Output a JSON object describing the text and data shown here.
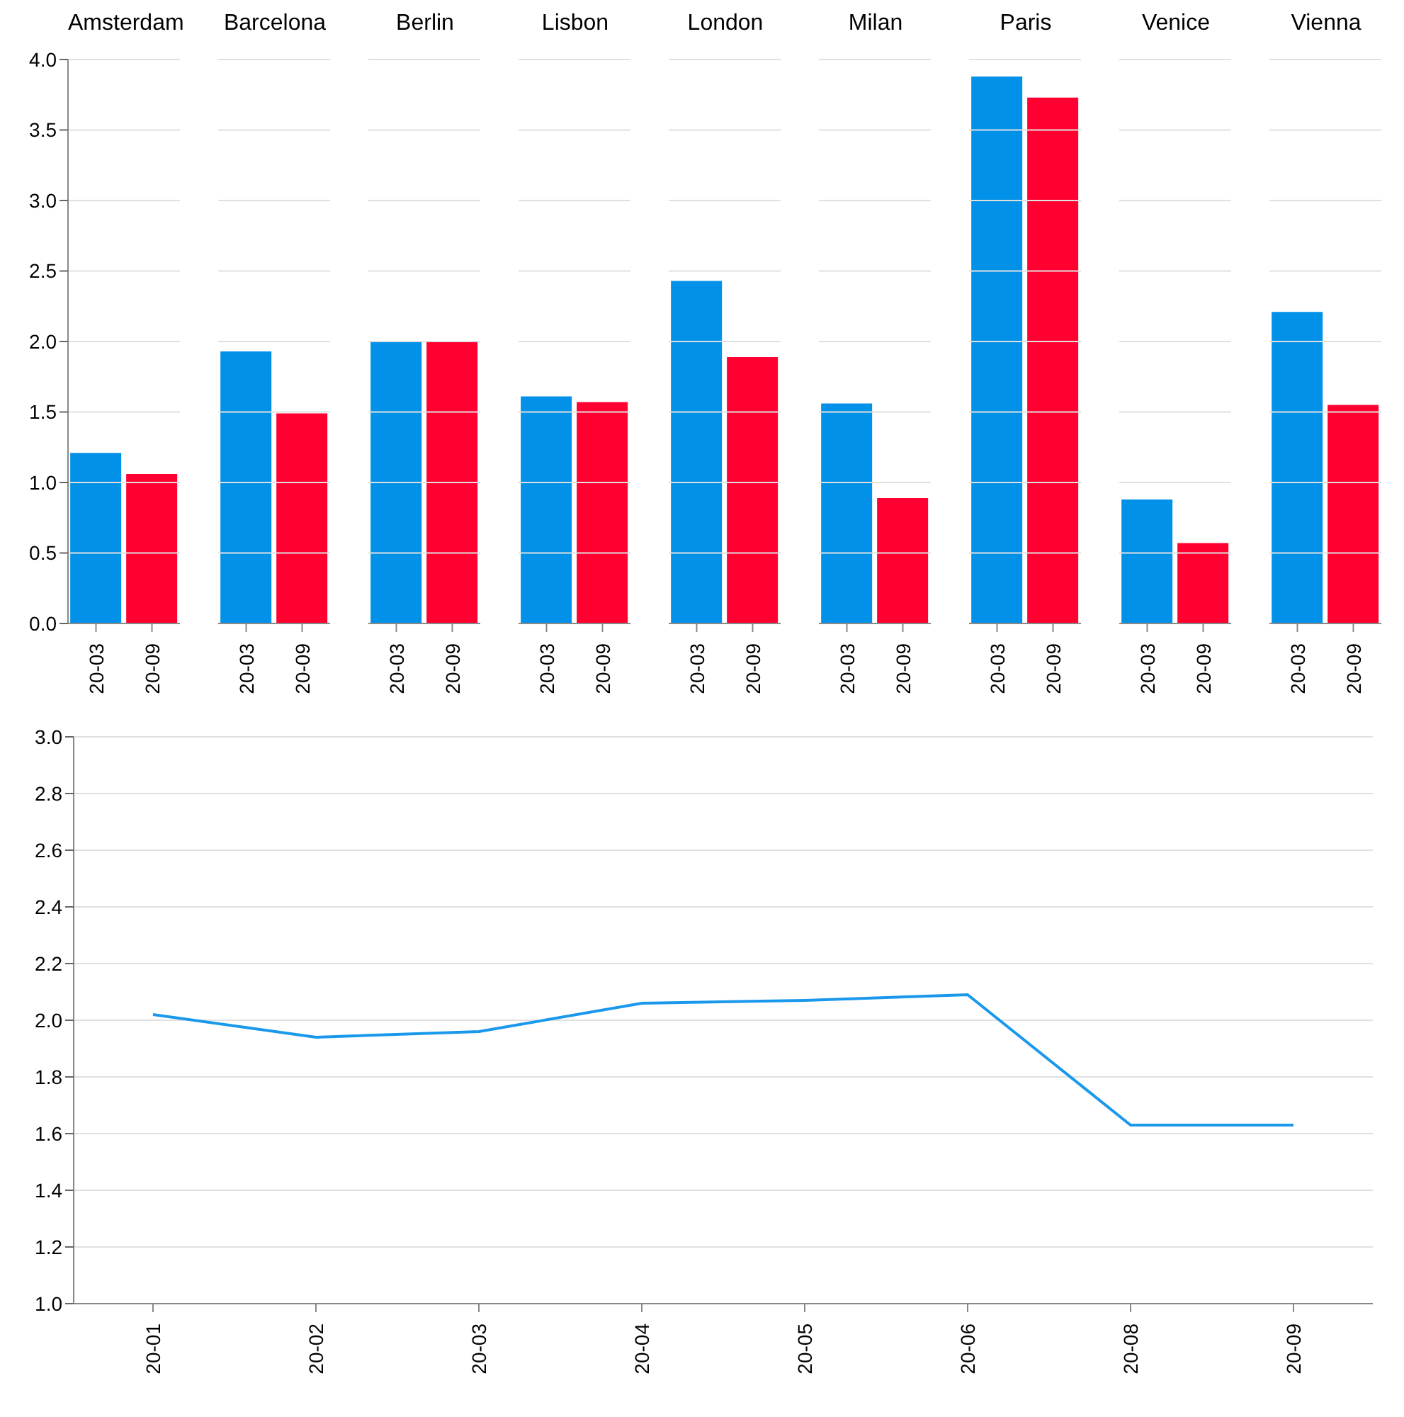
{
  "chart_data": [
    {
      "type": "bar",
      "title": "Amsterdam",
      "categories": [
        "20-03",
        "20-09"
      ],
      "values": [
        1.21,
        1.06
      ],
      "colors": [
        "#0291e8",
        "#ff0030"
      ],
      "ylim": [
        0,
        4
      ],
      "yticks": [
        {
          "value": 0,
          "label": "0.0"
        },
        {
          "value": 0.5,
          "label": "0.5"
        },
        {
          "value": 1,
          "label": "1.0"
        },
        {
          "value": 1.5,
          "label": "1.5"
        },
        {
          "value": 2,
          "label": "2.0"
        },
        {
          "value": 2.5,
          "label": "2.5"
        },
        {
          "value": 3,
          "label": "3.0"
        },
        {
          "value": 3.5,
          "label": "3.5"
        },
        {
          "value": 4,
          "label": "4.0"
        }
      ],
      "grid": "y"
    },
    {
      "type": "bar",
      "title": "Barcelona",
      "categories": [
        "20-03",
        "20-09"
      ],
      "values": [
        1.93,
        1.49
      ],
      "colors": [
        "#0291e8",
        "#ff0030"
      ],
      "ylim": [
        0,
        4
      ],
      "yticks": [
        0,
        0.5,
        1,
        1.5,
        2,
        2.5,
        3,
        3.5,
        4
      ],
      "grid": "y",
      "tick_labels": "x"
    },
    {
      "type": "bar",
      "title": "Berlin",
      "categories": [
        "20-03",
        "20-09"
      ],
      "values": [
        2.0,
        2.0
      ],
      "colors": [
        "#0291e8",
        "#ff0030"
      ],
      "ylim": [
        0,
        4
      ],
      "yticks": [
        0,
        0.5,
        1,
        1.5,
        2,
        2.5,
        3,
        3.5,
        4
      ],
      "grid": "y",
      "tick_labels": "x"
    },
    {
      "type": "bar",
      "title": "Lisbon",
      "categories": [
        "20-03",
        "20-09"
      ],
      "values": [
        1.61,
        1.57
      ],
      "colors": [
        "#0291e8",
        "#ff0030"
      ],
      "ylim": [
        0,
        4
      ],
      "yticks": [
        0,
        0.5,
        1,
        1.5,
        2,
        2.5,
        3,
        3.5,
        4
      ],
      "grid": "y",
      "tick_labels": "x"
    },
    {
      "type": "bar",
      "title": "London",
      "categories": [
        "20-03",
        "20-09"
      ],
      "values": [
        2.43,
        1.89
      ],
      "colors": [
        "#0291e8",
        "#ff0030"
      ],
      "ylim": [
        0,
        4
      ],
      "yticks": [
        0,
        0.5,
        1,
        1.5,
        2,
        2.5,
        3,
        3.5,
        4
      ],
      "grid": "y",
      "tick_labels": "x"
    },
    {
      "type": "bar",
      "title": "Milan",
      "categories": [
        "20-03",
        "20-09"
      ],
      "values": [
        1.56,
        0.89
      ],
      "colors": [
        "#0291e8",
        "#ff0030"
      ],
      "ylim": [
        0,
        4
      ],
      "yticks": [
        0,
        0.5,
        1,
        1.5,
        2,
        2.5,
        3,
        3.5,
        4
      ],
      "grid": "y",
      "tick_labels": "x"
    },
    {
      "type": "bar",
      "title": "Paris",
      "categories": [
        "20-03",
        "20-09"
      ],
      "values": [
        3.88,
        3.73
      ],
      "colors": [
        "#0291e8",
        "#ff0030"
      ],
      "ylim": [
        0,
        4
      ],
      "yticks": [
        0,
        0.5,
        1,
        1.5,
        2,
        2.5,
        3,
        3.5,
        4
      ],
      "grid": "y",
      "tick_labels": "x"
    },
    {
      "type": "bar",
      "title": "Venice",
      "categories": [
        "20-03",
        "20-09"
      ],
      "values": [
        0.88,
        0.57
      ],
      "colors": [
        "#0291e8",
        "#ff0030"
      ],
      "ylim": [
        0,
        4
      ],
      "yticks": [
        0,
        0.5,
        1,
        1.5,
        2,
        2.5,
        3,
        3.5,
        4
      ],
      "grid": "y",
      "tick_labels": "x"
    },
    {
      "type": "bar",
      "title": "Vienna",
      "categories": [
        "20-03",
        "20-09"
      ],
      "values": [
        2.21,
        1.55
      ],
      "colors": [
        "#0291e8",
        "#ff0030"
      ],
      "ylim": [
        0,
        4
      ],
      "yticks": [
        0,
        0.5,
        1,
        1.5,
        2,
        2.5,
        3,
        3.5,
        4
      ],
      "grid": "y",
      "tick_labels": "x"
    },
    {
      "type": "line",
      "categories": [
        "20-01",
        "20-02",
        "20-03",
        "20-04",
        "20-05",
        "20-06",
        "20-08",
        "20-09"
      ],
      "values": [
        2.02,
        1.94,
        1.96,
        2.06,
        2.07,
        2.09,
        1.63,
        1.63
      ],
      "color": "#1a98ec",
      "ylim": [
        1,
        3
      ],
      "yticks": [
        {
          "value": 1,
          "label": "1.0"
        },
        {
          "value": 1.2,
          "label": "1.2"
        },
        {
          "value": 1.4,
          "label": "1.4"
        },
        {
          "value": 1.6,
          "label": "1.6"
        },
        {
          "value": 1.8,
          "label": "1.8"
        },
        {
          "value": 2,
          "label": "2.0"
        },
        {
          "value": 2.2,
          "label": "2.2"
        },
        {
          "value": 2.4,
          "label": "2.4"
        },
        {
          "value": 2.6,
          "label": "2.6"
        },
        {
          "value": 2.8,
          "label": "2.8"
        },
        {
          "value": 3,
          "label": "3.0"
        }
      ],
      "grid": "y"
    }
  ]
}
